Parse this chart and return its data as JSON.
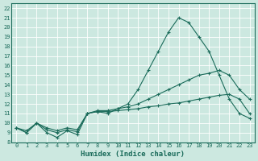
{
  "xlabel": "Humidex (Indice chaleur)",
  "bg_color": "#cce8e0",
  "line_color": "#1a6b5a",
  "xlim": [
    -0.5,
    23.5
  ],
  "ylim": [
    8,
    22.5
  ],
  "xticks": [
    0,
    1,
    2,
    3,
    4,
    5,
    6,
    7,
    8,
    9,
    10,
    11,
    12,
    13,
    14,
    15,
    16,
    17,
    18,
    19,
    20,
    21,
    22,
    23
  ],
  "yticks": [
    8,
    9,
    10,
    11,
    12,
    13,
    14,
    15,
    16,
    17,
    18,
    19,
    20,
    21,
    22
  ],
  "line1_x": [
    0,
    1,
    2,
    3,
    4,
    5,
    6,
    7,
    8,
    9,
    10,
    11,
    12,
    13,
    14,
    15,
    16,
    17,
    18,
    19,
    20,
    21,
    22,
    23
  ],
  "line1_y": [
    9.5,
    9.0,
    10.0,
    9.0,
    8.5,
    9.2,
    8.8,
    11.0,
    11.2,
    11.0,
    11.5,
    12.0,
    13.5,
    15.5,
    17.5,
    19.5,
    21.0,
    20.5,
    19.0,
    17.5,
    15.0,
    12.5,
    11.0,
    10.5
  ],
  "line2_x": [
    0,
    1,
    2,
    3,
    4,
    5,
    6,
    7,
    8,
    9,
    10,
    11,
    12,
    13,
    14,
    15,
    16,
    17,
    18,
    19,
    20,
    21,
    22,
    23
  ],
  "line2_y": [
    9.5,
    9.2,
    10.0,
    9.5,
    9.2,
    9.5,
    9.3,
    11.0,
    11.3,
    11.3,
    11.5,
    11.7,
    12.0,
    12.5,
    13.0,
    13.5,
    14.0,
    14.5,
    15.0,
    15.2,
    15.5,
    15.0,
    13.5,
    12.5
  ],
  "line3_x": [
    0,
    1,
    2,
    3,
    4,
    5,
    6,
    7,
    8,
    9,
    10,
    11,
    12,
    13,
    14,
    15,
    16,
    17,
    18,
    19,
    20,
    21,
    22,
    23
  ],
  "line3_y": [
    9.5,
    9.0,
    10.0,
    9.3,
    9.0,
    9.3,
    9.1,
    11.0,
    11.2,
    11.2,
    11.3,
    11.4,
    11.5,
    11.7,
    11.8,
    12.0,
    12.1,
    12.3,
    12.5,
    12.7,
    12.9,
    13.0,
    12.5,
    11.0
  ]
}
